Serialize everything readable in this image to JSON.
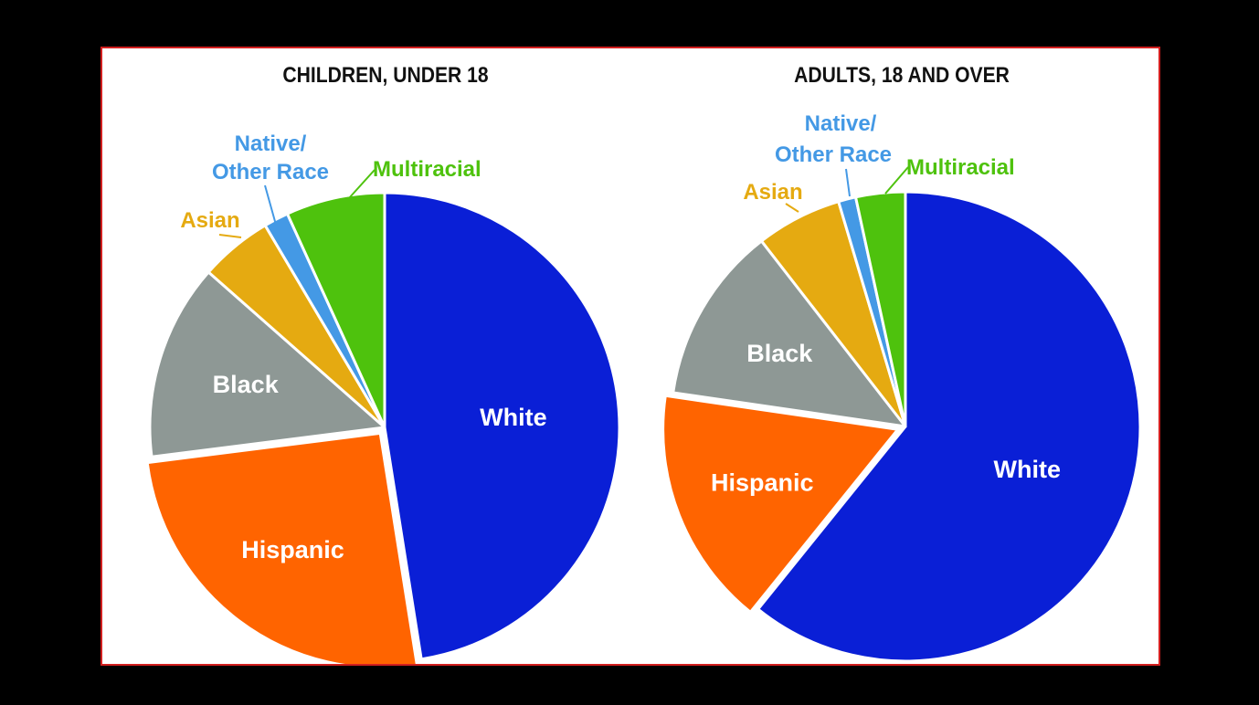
{
  "colors": {
    "White": "#0a1fd6",
    "Hispanic": "#ff6400",
    "Black": "#8e9895",
    "Asian": "#e5aa11",
    "Native/Other Race": "#4499e5",
    "Multiracial": "#4ec20d",
    "panel_border": "#d21f1f"
  },
  "chart_data": [
    {
      "type": "pie",
      "title": "CHILDREN, UNDER 18",
      "unit": "percent (estimated)",
      "slices": [
        {
          "label": "White",
          "value": 47.5
        },
        {
          "label": "Hispanic",
          "value": 25.5
        },
        {
          "label": "Black",
          "value": 13.5
        },
        {
          "label": "Asian",
          "value": 5.0
        },
        {
          "label": "Native/ Other Race",
          "value": 1.7
        },
        {
          "label": "Multiracial",
          "value": 6.8
        }
      ]
    },
    {
      "type": "pie",
      "title": "ADULTS, 18 AND OVER",
      "unit": "percent (estimated)",
      "slices": [
        {
          "label": "White",
          "value": 60.8
        },
        {
          "label": "Hispanic",
          "value": 16.5
        },
        {
          "label": "Black",
          "value": 12.2
        },
        {
          "label": "Asian",
          "value": 5.9
        },
        {
          "label": "Native/ Other Race",
          "value": 1.2
        },
        {
          "label": "Multiracial",
          "value": 3.4
        }
      ]
    }
  ]
}
